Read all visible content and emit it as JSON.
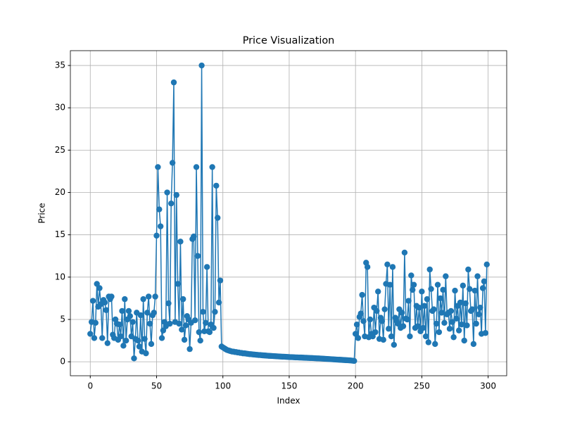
{
  "chart_data": {
    "type": "line",
    "title": "Price Visualization",
    "x_label": "Index",
    "y_label": "Price",
    "x": [
      0,
      1,
      2,
      3,
      4,
      5,
      6,
      7,
      8,
      9,
      10,
      11,
      12,
      13,
      14,
      15,
      16,
      17,
      18,
      19,
      20,
      21,
      22,
      23,
      24,
      25,
      26,
      27,
      28,
      29,
      30,
      31,
      32,
      33,
      34,
      35,
      36,
      37,
      38,
      39,
      40,
      41,
      42,
      43,
      44,
      45,
      46,
      47,
      48,
      49,
      50,
      51,
      52,
      53,
      54,
      55,
      56,
      57,
      58,
      59,
      60,
      61,
      62,
      63,
      64,
      65,
      66,
      67,
      68,
      69,
      70,
      71,
      72,
      73,
      74,
      75,
      76,
      77,
      78,
      79,
      80,
      81,
      82,
      83,
      84,
      85,
      86,
      87,
      88,
      89,
      90,
      91,
      92,
      93,
      94,
      95,
      96,
      97,
      98,
      99,
      100,
      101,
      102,
      103,
      104,
      105,
      106,
      107,
      108,
      109,
      110,
      111,
      112,
      113,
      114,
      115,
      116,
      117,
      118,
      119,
      120,
      121,
      122,
      123,
      124,
      125,
      126,
      127,
      128,
      129,
      130,
      131,
      132,
      133,
      134,
      135,
      136,
      137,
      138,
      139,
      140,
      141,
      142,
      143,
      144,
      145,
      146,
      147,
      148,
      149,
      150,
      151,
      152,
      153,
      154,
      155,
      156,
      157,
      158,
      159,
      160,
      161,
      162,
      163,
      164,
      165,
      166,
      167,
      168,
      169,
      170,
      171,
      172,
      173,
      174,
      175,
      176,
      177,
      178,
      179,
      180,
      181,
      182,
      183,
      184,
      185,
      186,
      187,
      188,
      189,
      190,
      191,
      192,
      193,
      194,
      195,
      196,
      197,
      198,
      199,
      200,
      201,
      202,
      203,
      204,
      205,
      206,
      207,
      208,
      209,
      210,
      211,
      212,
      213,
      214,
      215,
      216,
      217,
      218,
      219,
      220,
      221,
      222,
      223,
      224,
      225,
      226,
      227,
      228,
      229,
      230,
      231,
      232,
      233,
      234,
      235,
      236,
      237,
      238,
      239,
      240,
      241,
      242,
      243,
      244,
      245,
      246,
      247,
      248,
      249,
      250,
      251,
      252,
      253,
      254,
      255,
      256,
      257,
      258,
      259,
      260,
      261,
      262,
      263,
      264,
      265,
      266,
      267,
      268,
      269,
      270,
      271,
      272,
      273,
      274,
      275,
      276,
      277,
      278,
      279,
      280,
      281,
      282,
      283,
      284,
      285,
      286,
      287,
      288,
      289,
      290,
      291,
      292,
      293,
      294,
      295,
      296,
      297,
      298,
      299
    ],
    "series": [
      {
        "color": "#1f77b4",
        "values": [
          3.3,
          4.7,
          7.2,
          2.8,
          4.6,
          9.2,
          6.5,
          8.7,
          6.8,
          2.8,
          7.3,
          7.0,
          6.1,
          2.2,
          7.7,
          7.4,
          7.7,
          3.2,
          2.8,
          5.0,
          4.5,
          2.6,
          4.4,
          3.0,
          6.0,
          1.9,
          7.4,
          2.5,
          5.0,
          6.0,
          5.4,
          3.0,
          4.7,
          0.4,
          2.7,
          5.8,
          2.5,
          1.8,
          5.5,
          1.2,
          7.4,
          2.7,
          1.0,
          5.8,
          7.7,
          4.5,
          2.1,
          5.5,
          5.8,
          7.7,
          14.9,
          23.0,
          18.0,
          16.0,
          2.8,
          3.7,
          4.7,
          4.2,
          20.0,
          6.9,
          4.5,
          18.7,
          23.5,
          33.0,
          4.7,
          19.7,
          9.2,
          4.5,
          14.2,
          3.8,
          7.4,
          2.6,
          4.3,
          5.4,
          5.0,
          1.5,
          4.6,
          14.5,
          14.8,
          4.9,
          23.0,
          12.5,
          3.5,
          2.5,
          35.0,
          5.9,
          3.6,
          4.6,
          11.2,
          3.6,
          3.5,
          4.4,
          23.0,
          4.0,
          5.9,
          20.8,
          17.0,
          7.0,
          9.6,
          1.8,
          1.7,
          1.6,
          1.5,
          1.4,
          1.35,
          1.3,
          1.25,
          1.2,
          1.2,
          1.15,
          1.15,
          1.1,
          1.1,
          1.05,
          1.05,
          1.0,
          1.0,
          0.98,
          0.95,
          0.93,
          0.9,
          0.9,
          0.88,
          0.86,
          0.85,
          0.83,
          0.82,
          0.8,
          0.8,
          0.78,
          0.76,
          0.75,
          0.74,
          0.72,
          0.71,
          0.7,
          0.69,
          0.68,
          0.67,
          0.66,
          0.65,
          0.64,
          0.63,
          0.62,
          0.61,
          0.6,
          0.6,
          0.59,
          0.58,
          0.57,
          0.56,
          0.55,
          0.55,
          0.54,
          0.53,
          0.52,
          0.52,
          0.51,
          0.5,
          0.5,
          0.49,
          0.48,
          0.47,
          0.47,
          0.46,
          0.45,
          0.44,
          0.44,
          0.43,
          0.42,
          0.41,
          0.4,
          0.4,
          0.39,
          0.38,
          0.37,
          0.36,
          0.35,
          0.34,
          0.33,
          0.32,
          0.31,
          0.3,
          0.29,
          0.28,
          0.27,
          0.26,
          0.25,
          0.24,
          0.23,
          0.22,
          0.21,
          0.2,
          0.19,
          0.18,
          0.17,
          0.16,
          0.14,
          0.12,
          0.1,
          3.3,
          4.4,
          2.8,
          5.3,
          5.7,
          7.9,
          4.8,
          3.0,
          11.7,
          11.2,
          2.9,
          5.0,
          3.3,
          3.0,
          6.4,
          3.5,
          6.0,
          8.3,
          2.7,
          5.2,
          4.8,
          2.6,
          6.2,
          9.2,
          11.5,
          3.9,
          9.1,
          3.0,
          11.2,
          2.0,
          5.2,
          4.8,
          4.5,
          6.2,
          4.0,
          5.8,
          4.2,
          12.9,
          5.1,
          5.0,
          7.2,
          3.0,
          10.2,
          8.5,
          9.1,
          4.0,
          6.6,
          4.2,
          6.4,
          3.6,
          8.3,
          4.0,
          6.6,
          3.0,
          7.4,
          2.3,
          10.9,
          8.6,
          6.0,
          6.2,
          2.1,
          4.5,
          9.1,
          3.5,
          7.5,
          5.8,
          8.5,
          4.6,
          10.1,
          5.6,
          5.8,
          3.9,
          6.0,
          4.7,
          2.9,
          8.4,
          5.1,
          6.6,
          3.7,
          7.0,
          4.4,
          9.0,
          2.5,
          6.9,
          4.3,
          10.9,
          8.6,
          6.0,
          6.2,
          2.1,
          8.4,
          4.5,
          10.1,
          5.6,
          6.4,
          3.3,
          8.7,
          9.5,
          3.4,
          11.5
        ]
      }
    ],
    "xlim": [
      -15,
      314
    ],
    "ylim": [
      -1.65,
      36.75
    ],
    "xticks": [
      0,
      50,
      100,
      150,
      200,
      250,
      300
    ],
    "yticks": [
      0,
      5,
      10,
      15,
      20,
      25,
      30,
      35
    ],
    "grid": true
  }
}
